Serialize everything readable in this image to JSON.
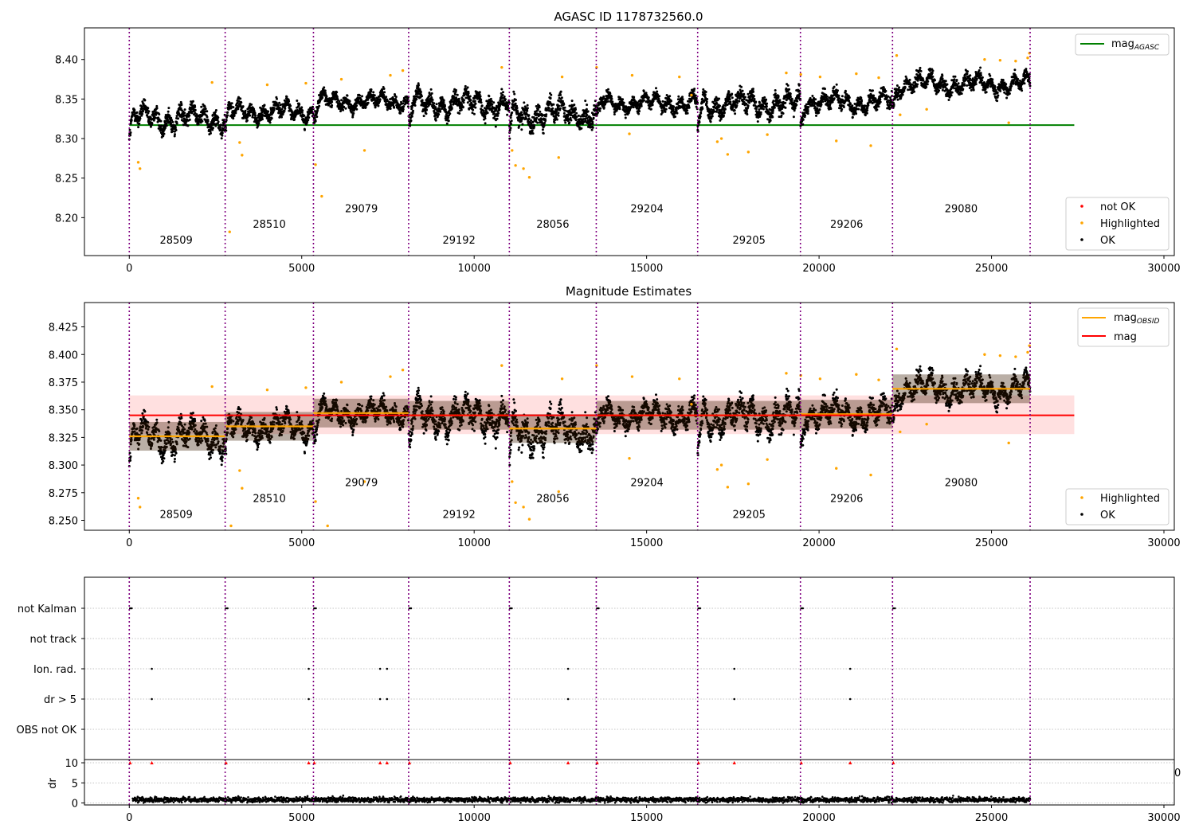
{
  "chart_data": [
    {
      "type": "scatter",
      "title": "AGASC ID 1178732560.0",
      "xlabel": "",
      "ylabel": "",
      "xlim": [
        -1300,
        30300
      ],
      "ylim": [
        8.152,
        8.44
      ],
      "x_ticks": [
        0,
        5000,
        10000,
        15000,
        20000,
        25000,
        30000
      ],
      "y_ticks": [
        8.2,
        8.25,
        8.3,
        8.35,
        8.4
      ],
      "obsid_boundaries": [
        0,
        2780,
        5340,
        8100,
        11020,
        13540,
        16480,
        19460,
        22130,
        26120
      ],
      "obsid_labels": [
        {
          "label": "28509",
          "x": 1360,
          "y": 8.167
        },
        {
          "label": "28510",
          "x": 4060,
          "y": 8.187
        },
        {
          "label": "29079",
          "x": 6730,
          "y": 8.207
        },
        {
          "label": "29192",
          "x": 9560,
          "y": 8.167
        },
        {
          "label": "28056",
          "x": 12280,
          "y": 8.187
        },
        {
          "label": "29204",
          "x": 15010,
          "y": 8.207
        },
        {
          "label": "29205",
          "x": 17970,
          "y": 8.167
        },
        {
          "label": "29206",
          "x": 20800,
          "y": 8.187
        },
        {
          "label": "29080",
          "x": 24120,
          "y": 8.207
        }
      ],
      "mag_agasc": 8.317,
      "mag_line_range": [
        0,
        27400
      ],
      "series": [
        {
          "name": "not OK",
          "color": "#ff0000",
          "values": []
        },
        {
          "name": "Highlighted",
          "color": "#ffa500",
          "points": [
            [
              260,
              8.27
            ],
            [
              310,
              8.262
            ],
            [
              2400,
              8.371
            ],
            [
              3200,
              8.295
            ],
            [
              3270,
              8.279
            ],
            [
              2910,
              8.182
            ],
            [
              4000,
              8.368
            ],
            [
              5120,
              8.37
            ],
            [
              5400,
              8.267
            ],
            [
              5580,
              8.227
            ],
            [
              6150,
              8.375
            ],
            [
              6820,
              8.285
            ],
            [
              7570,
              8.38
            ],
            [
              7930,
              8.386
            ],
            [
              10800,
              8.39
            ],
            [
              11200,
              8.266
            ],
            [
              11430,
              8.262
            ],
            [
              11600,
              8.251
            ],
            [
              11100,
              8.285
            ],
            [
              12450,
              8.276
            ],
            [
              12550,
              8.378
            ],
            [
              13550,
              8.39
            ],
            [
              14500,
              8.306
            ],
            [
              14580,
              8.38
            ],
            [
              15950,
              8.378
            ],
            [
              16300,
              8.355
            ],
            [
              17050,
              8.296
            ],
            [
              17170,
              8.3
            ],
            [
              17350,
              8.28
            ],
            [
              17950,
              8.283
            ],
            [
              18500,
              8.305
            ],
            [
              19050,
              8.383
            ],
            [
              19470,
              8.381
            ],
            [
              20030,
              8.378
            ],
            [
              20500,
              8.297
            ],
            [
              21080,
              8.382
            ],
            [
              21500,
              8.291
            ],
            [
              21730,
              8.377
            ],
            [
              22250,
              8.405
            ],
            [
              22350,
              8.33
            ],
            [
              23120,
              8.337
            ],
            [
              24800,
              8.4
            ],
            [
              25250,
              8.399
            ],
            [
              25500,
              8.32
            ],
            [
              25700,
              8.398
            ],
            [
              26050,
              8.402
            ],
            [
              26100,
              8.408
            ]
          ]
        },
        {
          "name": "OK",
          "color": "#000000",
          "segments": [
            {
              "x": [
                0,
                2780
              ],
              "mean": 8.326,
              "amp": 0.016
            },
            {
              "x": [
                2780,
                5340
              ],
              "mean": 8.334,
              "amp": 0.013
            },
            {
              "x": [
                5340,
                8100
              ],
              "mean": 8.347,
              "amp": 0.011
            },
            {
              "x": [
                8100,
                11020
              ],
              "mean": 8.344,
              "amp": 0.016
            },
            {
              "x": [
                11020,
                13540
              ],
              "mean": 8.332,
              "amp": 0.017
            },
            {
              "x": [
                13540,
                16480
              ],
              "mean": 8.345,
              "amp": 0.012
            },
            {
              "x": [
                16480,
                19460
              ],
              "mean": 8.344,
              "amp": 0.016
            },
            {
              "x": [
                19460,
                22130
              ],
              "mean": 8.346,
              "amp": 0.013
            },
            {
              "x": [
                22130,
                26120
              ],
              "mean": 8.369,
              "amp": 0.013
            }
          ]
        }
      ],
      "legend_lines": [
        {
          "label": "mag",
          "sub": "AGASC",
          "color": "#008000"
        }
      ],
      "legend_markers": [
        {
          "label": "not OK",
          "color": "#ff0000"
        },
        {
          "label": "Highlighted",
          "color": "#ffa500"
        },
        {
          "label": "OK",
          "color": "#000000"
        }
      ],
      "legend_placement": [
        "top-right",
        "bottom-right"
      ],
      "grid": false
    },
    {
      "type": "scatter",
      "title": "Magnitude Estimates",
      "xlabel": "",
      "ylabel": "",
      "xlim": [
        -1300,
        30300
      ],
      "ylim": [
        8.241,
        8.447
      ],
      "x_ticks": [
        0,
        5000,
        10000,
        15000,
        20000,
        25000,
        30000
      ],
      "y_ticks": [
        8.25,
        8.275,
        8.3,
        8.325,
        8.35,
        8.375,
        8.4,
        8.425
      ],
      "obsid_boundaries": [
        0,
        2780,
        5340,
        8100,
        11020,
        13540,
        16480,
        19460,
        22130,
        26120
      ],
      "obsid_labels": [
        {
          "label": "28509",
          "x": 1360,
          "y": 8.252
        },
        {
          "label": "28510",
          "x": 4060,
          "y": 8.2665
        },
        {
          "label": "29079",
          "x": 6730,
          "y": 8.281
        },
        {
          "label": "29192",
          "x": 9560,
          "y": 8.252
        },
        {
          "label": "28056",
          "x": 12280,
          "y": 8.2665
        },
        {
          "label": "29204",
          "x": 15010,
          "y": 8.281
        },
        {
          "label": "29205",
          "x": 17970,
          "y": 8.252
        },
        {
          "label": "29206",
          "x": 20800,
          "y": 8.2665
        },
        {
          "label": "29080",
          "x": 24120,
          "y": 8.281
        }
      ],
      "mag": 8.345,
      "mag_band": [
        8.328,
        8.363
      ],
      "mag_line_range": [
        0,
        27400
      ],
      "mag_obsid": [
        8.326,
        8.335,
        8.347,
        8.345,
        8.333,
        8.345,
        8.345,
        8.346,
        8.369
      ],
      "series": [
        {
          "name": "Highlighted",
          "color": "#ffa500"
        },
        {
          "name": "OK",
          "color": "#000000"
        }
      ],
      "extra_highlighted": [
        [
          2950,
          8.245
        ],
        [
          5750,
          8.245
        ]
      ],
      "legend_lines": [
        {
          "label": "mag",
          "sub": "OBSID",
          "color": "#ffa500"
        },
        {
          "label": "mag",
          "sub": "",
          "color": "#ff0000"
        }
      ],
      "legend_markers": [
        {
          "label": "Highlighted",
          "color": "#ffa500"
        },
        {
          "label": "OK",
          "color": "#000000"
        }
      ],
      "legend_placement": [
        "top-right",
        "bottom-right"
      ],
      "grid": false
    },
    {
      "type": "scatter",
      "title": "",
      "xlabel": "",
      "ylabel": "",
      "xlim": [
        -1300,
        30300
      ],
      "categories": [
        "not Kalman",
        "not track",
        "Ion. rad.",
        "dr > 5",
        "OBS not OK"
      ],
      "flags": {
        "not Kalman": [
          0,
          2780,
          5340,
          8100,
          11020,
          13540,
          16480,
          19460,
          22130
        ],
        "not track": [],
        "Ion. rad.": [
          630,
          5180,
          7250,
          7450,
          12700,
          17520,
          20880
        ],
        "dr > 5": [
          630,
          5180,
          7250,
          7450,
          12700,
          17520,
          20880
        ],
        "OBS not OK": []
      },
      "obsid_boundaries": [
        0,
        2780,
        5340,
        8100,
        11020,
        13540,
        16480,
        19460,
        22130,
        26120
      ],
      "grid": true
    },
    {
      "type": "scatter",
      "title": "",
      "xlabel": "",
      "ylabel": "dr",
      "xlim": [
        -1300,
        30300
      ],
      "ylim": [
        -0.5,
        10.8
      ],
      "x_ticks": [
        0,
        5000,
        10000,
        15000,
        20000,
        25000,
        30000
      ],
      "y_ticks": [
        0,
        5,
        10
      ],
      "dr_typical": 0.8,
      "dr_max": 2.5,
      "dr_clipped": {
        "value": 10,
        "x": [
          0,
          630,
          2780,
          5180,
          5340,
          7250,
          7450,
          8100,
          11020,
          12700,
          13540,
          16480,
          17520,
          19460,
          20880,
          22130
        ]
      },
      "obsid_boundaries": [
        0,
        2780,
        5340,
        8100,
        11020,
        13540,
        16480,
        19460,
        22130,
        26120
      ],
      "grid": true
    }
  ],
  "overflow_tick_label": "0"
}
